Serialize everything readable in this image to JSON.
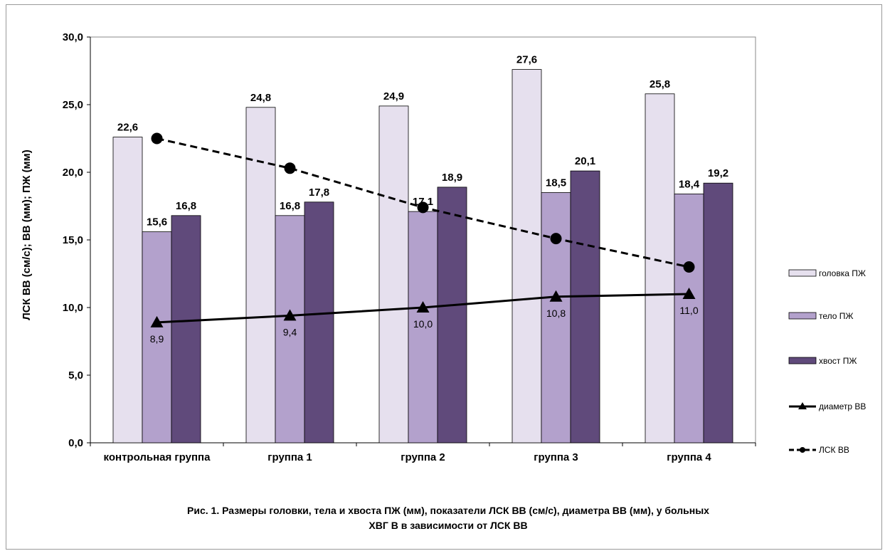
{
  "chart_data": {
    "type": "bar",
    "categories": [
      "контрольная группа",
      "группа 1",
      "группа 2",
      "группа 3",
      "группа 4"
    ],
    "series": [
      {
        "name": "головка ПЖ",
        "kind": "bar",
        "color": "#e6e0ee",
        "values": [
          22.6,
          24.8,
          24.9,
          27.6,
          25.8
        ],
        "labels": [
          "22,6",
          "24,8",
          "24,9",
          "27,6",
          "25,8"
        ]
      },
      {
        "name": "тело ПЖ",
        "kind": "bar",
        "color": "#b3a1cc",
        "values": [
          15.6,
          16.8,
          17.1,
          18.5,
          18.4
        ],
        "labels": [
          "15,6",
          "16,8",
          "17,1",
          "18,5",
          "18,4"
        ]
      },
      {
        "name": "хвост ПЖ",
        "kind": "bar",
        "color": "#604a7b",
        "values": [
          16.8,
          17.8,
          18.9,
          20.1,
          19.2
        ],
        "labels": [
          "16,8",
          "17,8",
          "18,9",
          "20,1",
          "19,2"
        ]
      },
      {
        "name": "диаметр ВВ",
        "kind": "line",
        "style": "solid",
        "marker": "triangle",
        "color": "#000000",
        "values": [
          8.9,
          9.4,
          10.0,
          10.8,
          11.0
        ],
        "labels": [
          "8,9",
          "9,4",
          "10,0",
          "10,8",
          "11,0"
        ]
      },
      {
        "name": "ЛСК ВВ",
        "kind": "line",
        "style": "dashed",
        "marker": "circle",
        "color": "#000000",
        "values": [
          22.5,
          20.3,
          17.4,
          15.1,
          13.0
        ]
      }
    ],
    "ylabel": "ЛСК ВВ (см/с); ВВ (мм); ПЖ (мм)",
    "ylim": [
      0,
      30
    ],
    "yticks": [
      "0,0",
      "5,0",
      "10,0",
      "15,0",
      "20,0",
      "25,0",
      "30,0"
    ],
    "legend_position": "right",
    "grid": false,
    "caption_line1": "Рис. 1. Размеры головки, тела и хвоста ПЖ (мм), показатели ЛСК ВВ (см/с), диаметра ВВ (мм),  у больных",
    "caption_line2": "ХВГ В в зависимости от ЛСК ВВ"
  }
}
